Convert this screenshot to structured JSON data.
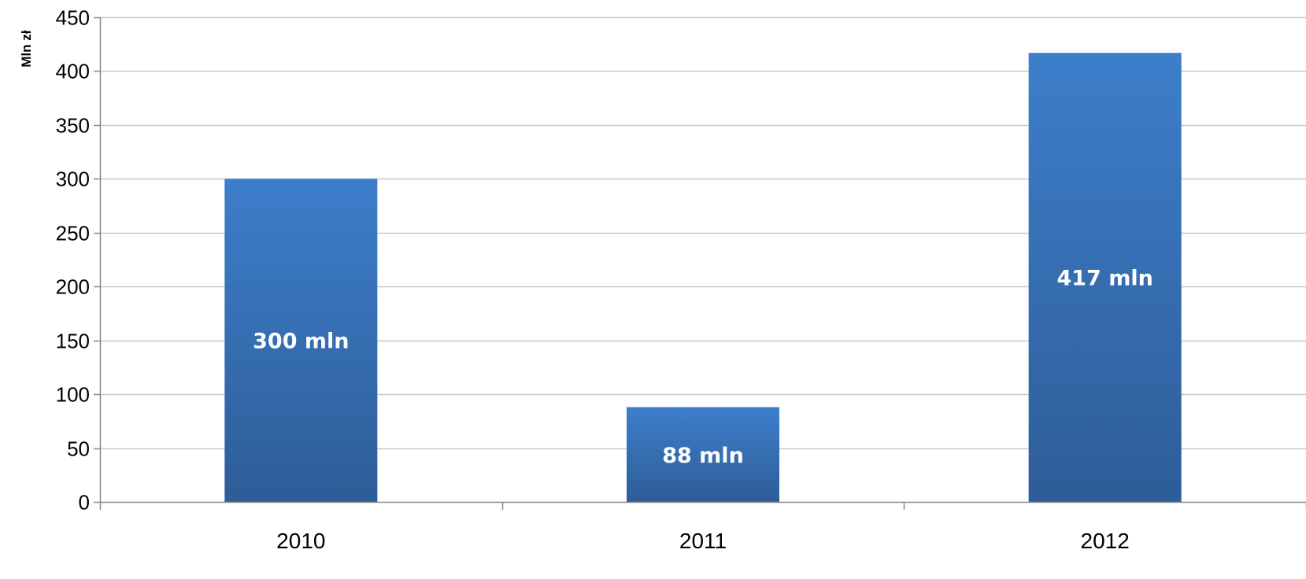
{
  "chart_data": {
    "type": "bar",
    "title": "",
    "xlabel": "",
    "ylabel": "Mln zł",
    "categories": [
      "2010",
      "2011",
      "2012"
    ],
    "values": [
      300,
      88,
      417
    ],
    "data_labels": [
      "300 mln",
      "88 mln",
      "417 mln"
    ],
    "ylim": [
      0,
      450
    ],
    "yticks": [
      "0",
      "50",
      "100",
      "150",
      "200",
      "250",
      "300",
      "350",
      "400",
      "450"
    ],
    "grid": true,
    "legend": "none",
    "colors": {
      "bar_top": "#3d7ecb",
      "bar_bottom": "#2e5d98",
      "gridline": "#c8c8c8",
      "axis": "#888888"
    }
  }
}
